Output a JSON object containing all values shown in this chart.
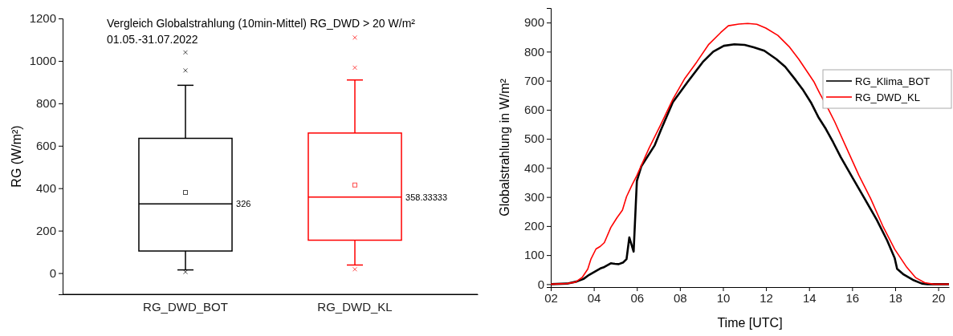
{
  "chart_data": [
    {
      "type": "box",
      "title": "Vergleich Globalstrahlung (10min-Mittel) RG_DWD > 20 W/m²",
      "subtitle": "01.05.-31.07.2022",
      "ylabel": "RG (W/m²)",
      "categories": [
        "RG_DWD_BOT",
        "RG_DWD_KL"
      ],
      "colors": [
        "#000000",
        "#ff0000"
      ],
      "boxes": [
        {
          "low": 15,
          "q1": 104,
          "median": 326,
          "q3": 635,
          "high": 885,
          "mean": 380,
          "outliers": [
            1040,
            955,
            5
          ]
        },
        {
          "low": 38,
          "q1": 155,
          "median": 358.33333,
          "q3": 660,
          "high": 910,
          "mean": 415,
          "outliers": [
            1110,
            968,
            18
          ]
        }
      ],
      "ylim": [
        -100,
        1200
      ],
      "yticks": [
        0,
        200,
        400,
        600,
        800,
        1000,
        1200
      ],
      "annotations": [
        "326",
        "358.33333"
      ],
      "grid": false
    },
    {
      "type": "line",
      "xlabel": "Time [UTC]",
      "ylabel": "Globalstrahlung in W/m²",
      "xlim": [
        2,
        20.5
      ],
      "xticks": [
        {
          "value": 2,
          "label": "02"
        },
        {
          "value": 4,
          "label": "04"
        },
        {
          "value": 6,
          "label": "06"
        },
        {
          "value": 8,
          "label": "08"
        },
        {
          "value": 10,
          "label": "10"
        },
        {
          "value": 12,
          "label": "12"
        },
        {
          "value": 14,
          "label": "14"
        },
        {
          "value": 16,
          "label": "16"
        },
        {
          "value": 18,
          "label": "18"
        },
        {
          "value": 20,
          "label": "20"
        }
      ],
      "ylim": [
        -10,
        950
      ],
      "yticks": [
        0,
        100,
        200,
        300,
        400,
        500,
        600,
        700,
        800,
        900
      ],
      "legend": "top right",
      "grid": false,
      "marker": "none",
      "line_style": "solid",
      "series": [
        {
          "name": "RG_Klima_BOT",
          "color": "#000000",
          "x": [
            2,
            2.75,
            3.2,
            3.52,
            3.78,
            4.04,
            4.3,
            4.49,
            4.79,
            4.98,
            5.16,
            5.37,
            5.52,
            5.65,
            5.85,
            6.0,
            6.21,
            6.83,
            7.11,
            7.67,
            8.37,
            9.06,
            9.55,
            10.04,
            10.53,
            11.01,
            11.43,
            11.92,
            12.48,
            12.89,
            13.38,
            13.73,
            14.08,
            14.43,
            14.78,
            15.12,
            15.47,
            16.03,
            16.59,
            17.14,
            17.63,
            17.98,
            18.09,
            18.4,
            18.82,
            19.24,
            19.5,
            20.5
          ],
          "values": [
            0,
            2,
            9,
            18,
            32,
            43,
            54,
            59,
            72,
            70,
            69,
            75,
            86,
            161,
            112,
            355,
            406,
            478,
            529,
            626,
            697,
            764,
            800,
            820,
            825,
            823,
            815,
            803,
            774,
            748,
            702,
            667,
            626,
            575,
            534,
            488,
            437,
            365,
            293,
            222,
            150,
            89,
            53,
            33,
            15,
            2,
            0,
            0
          ]
        },
        {
          "name": "RG_DWD_KL",
          "color": "#ff0000",
          "x": [
            2,
            2.75,
            3.14,
            3.46,
            3.72,
            3.87,
            4.1,
            4.3,
            4.49,
            4.79,
            5.07,
            5.33,
            5.52,
            5.78,
            6.0,
            6.56,
            7.11,
            7.67,
            8.23,
            8.78,
            9.34,
            9.9,
            10.25,
            10.74,
            11.15,
            11.57,
            11.99,
            12.55,
            13.1,
            13.52,
            13.94,
            14.22,
            14.5,
            14.91,
            15.19,
            15.75,
            16.31,
            16.87,
            17.42,
            17.98,
            18.54,
            18.96,
            19.37,
            19.79,
            20.5
          ],
          "values": [
            0,
            2,
            7,
            23,
            52,
            87,
            121,
            130,
            143,
            195,
            228,
            255,
            301,
            342,
            374,
            467,
            549,
            636,
            708,
            764,
            825,
            866,
            889,
            895,
            897,
            894,
            881,
            856,
            815,
            774,
            728,
            697,
            656,
            600,
            559,
            467,
            375,
            293,
            201,
            120,
            58,
            22,
            5,
            0,
            0
          ]
        }
      ]
    }
  ]
}
